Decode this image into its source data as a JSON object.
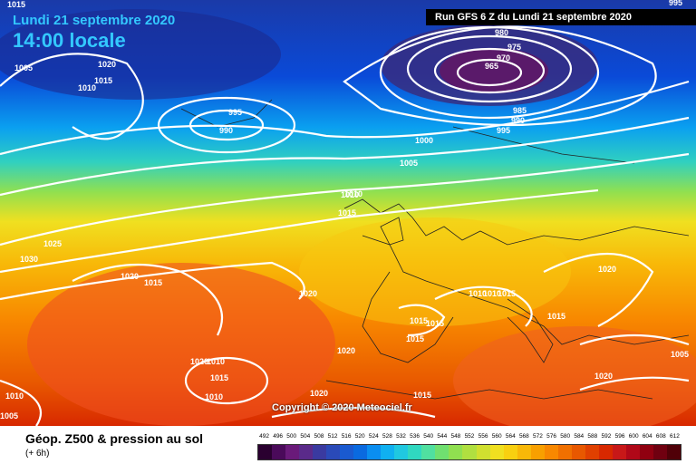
{
  "header": {
    "date": "Lundi 21 septembre 2020",
    "time": "14:00 locale",
    "run": "Run GFS 6 Z du Lundi 21 septembre 2020"
  },
  "copyright": "Copyright © 2020 Meteociel.fr",
  "legend": {
    "title": "Géop. Z500 & pression au sol",
    "subtitle": "(+ 6h)",
    "scale_values": [
      "492",
      "496",
      "500",
      "504",
      "508",
      "512",
      "516",
      "520",
      "524",
      "528",
      "532",
      "536",
      "540",
      "544",
      "548",
      "552",
      "556",
      "560",
      "564",
      "568",
      "572",
      "576",
      "580",
      "584",
      "588",
      "592",
      "596",
      "600",
      "604",
      "608",
      "612"
    ],
    "scale_colors": [
      "#2a0030",
      "#4a0a5a",
      "#6a1a7a",
      "#5a2a8a",
      "#3a3aa0",
      "#2a4ab8",
      "#1a5ad0",
      "#0a6ae0",
      "#0a8ef0",
      "#10b0f0",
      "#20c8e0",
      "#30d8c0",
      "#50e0a0",
      "#70e070",
      "#90e050",
      "#b0e040",
      "#d0e030",
      "#f0e020",
      "#f8d010",
      "#f8b808",
      "#f8a000",
      "#f88800",
      "#f07000",
      "#e85800",
      "#e04000",
      "#d82800",
      "#c81818",
      "#b00818",
      "#900010",
      "#700010",
      "#500008"
    ]
  },
  "isobars": [
    "1015",
    "1005",
    "1010",
    "1015",
    "1020",
    "1010",
    "995",
    "990",
    "980",
    "975",
    "970",
    "965",
    "985",
    "990",
    "995",
    "1000",
    "1005",
    "1010",
    "1015",
    "1025",
    "1030",
    "1020",
    "1015",
    "1020",
    "1010",
    "1010",
    "1015",
    "1015",
    "1015",
    "1020",
    "1015",
    "1020",
    "1015",
    "1010",
    "1015",
    "1010",
    "1020",
    "1020",
    "1015",
    "1010",
    "1005",
    "1005",
    "1020",
    "995"
  ]
}
